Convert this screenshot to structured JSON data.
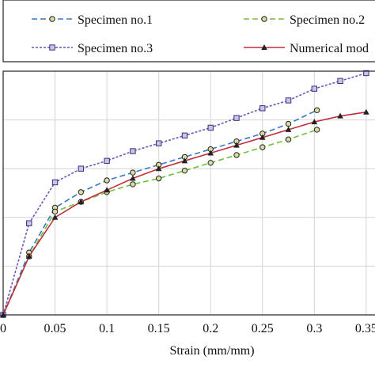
{
  "chart_data": {
    "type": "line",
    "title": "",
    "xlabel": "Strain (mm/mm)",
    "ylabel": "",
    "xlim": [
      0,
      0.36
    ],
    "ylim": [
      0,
      1.25
    ],
    "x_ticks": [
      0,
      0.05,
      0.1,
      0.15,
      0.2,
      0.25,
      0.3,
      0.35
    ],
    "x_tick_labels": [
      "0",
      "0.05",
      "0.1",
      "0.15",
      "0.2",
      "0.25",
      "0.3",
      "0.35"
    ],
    "y_gridlines": [
      0.25,
      0.5,
      0.75,
      1.0
    ],
    "grid": {
      "x": true,
      "y": true
    },
    "legend": {
      "placement": "top",
      "columns": 2
    },
    "series": [
      {
        "name": "Specimen no.1",
        "color": "#3a78c0",
        "dash": "dashed",
        "marker": "circle",
        "x": [
          0,
          0.025,
          0.05,
          0.075,
          0.1,
          0.125,
          0.15,
          0.175,
          0.2,
          0.225,
          0.25,
          0.275,
          0.3025
        ],
        "y": [
          0,
          0.32,
          0.55,
          0.63,
          0.69,
          0.73,
          0.77,
          0.81,
          0.85,
          0.89,
          0.93,
          0.98,
          1.05
        ]
      },
      {
        "name": "Specimen no.2",
        "color": "#6ec03a",
        "dash": "dashed",
        "marker": "circle",
        "x": [
          0,
          0.025,
          0.05,
          0.075,
          0.1,
          0.125,
          0.15,
          0.175,
          0.2,
          0.225,
          0.25,
          0.275,
          0.3025
        ],
        "y": [
          0,
          0.3,
          0.53,
          0.58,
          0.63,
          0.67,
          0.7,
          0.74,
          0.78,
          0.82,
          0.86,
          0.9,
          0.95
        ]
      },
      {
        "name": "Specimen no.3",
        "color": "#7453b8",
        "dash": "dotted",
        "marker": "square",
        "x": [
          0,
          0.025,
          0.05,
          0.075,
          0.1,
          0.125,
          0.15,
          0.175,
          0.2,
          0.225,
          0.25,
          0.275,
          0.3,
          0.325,
          0.35
        ],
        "y": [
          0,
          0.47,
          0.68,
          0.75,
          0.79,
          0.84,
          0.88,
          0.92,
          0.96,
          1.01,
          1.06,
          1.1,
          1.16,
          1.2,
          1.24
        ]
      },
      {
        "name": "Numerical mod",
        "color": "#c0303c",
        "dash": "solid",
        "marker": "triangle",
        "x": [
          0,
          0.025,
          0.05,
          0.075,
          0.1,
          0.125,
          0.15,
          0.175,
          0.2,
          0.225,
          0.25,
          0.275,
          0.3,
          0.325,
          0.35
        ],
        "y": [
          0,
          0.3,
          0.5,
          0.58,
          0.64,
          0.7,
          0.75,
          0.79,
          0.83,
          0.87,
          0.91,
          0.95,
          0.99,
          1.02,
          1.04
        ]
      }
    ]
  }
}
